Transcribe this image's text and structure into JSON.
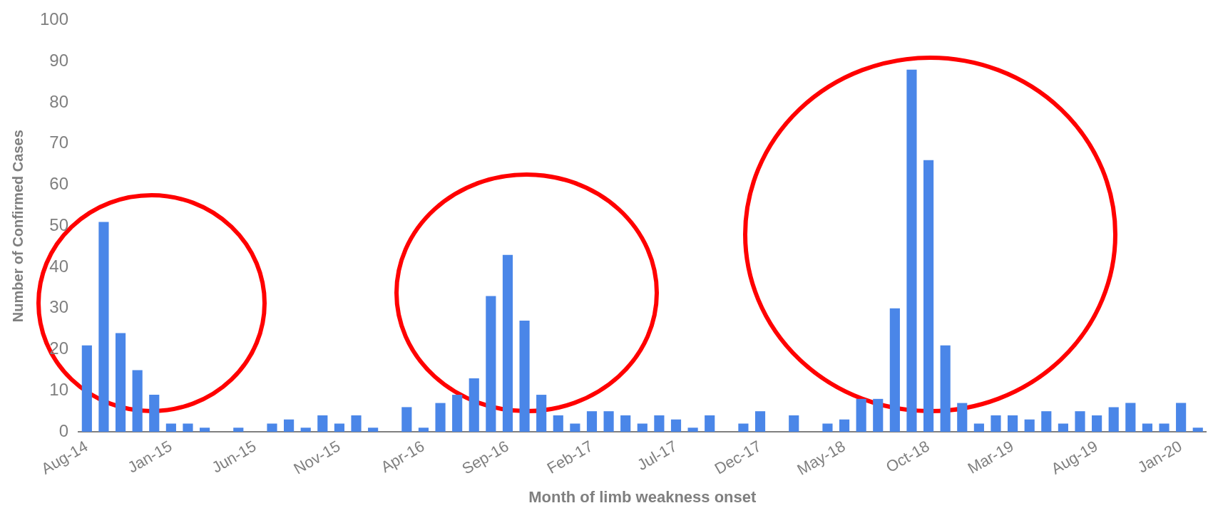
{
  "chart_data": {
    "type": "bar",
    "xlabel": "Month of limb weakness onset",
    "ylabel": "Number of Confirmed Cases",
    "categories": [
      "Aug-14",
      null,
      null,
      null,
      null,
      "Jan-15",
      null,
      null,
      null,
      null,
      "Jun-15",
      null,
      null,
      null,
      null,
      "Nov-15",
      null,
      null,
      null,
      null,
      "Apr-16",
      null,
      null,
      null,
      null,
      "Sep-16",
      null,
      null,
      null,
      null,
      "Feb-17",
      null,
      null,
      null,
      null,
      "Jul-17",
      null,
      null,
      null,
      null,
      "Dec-17",
      null,
      null,
      null,
      null,
      "May-18",
      null,
      null,
      null,
      null,
      "Oct-18",
      null,
      null,
      null,
      null,
      "Mar-19",
      null,
      null,
      null,
      null,
      "Aug-19",
      null,
      null,
      null,
      null,
      "Jan-20",
      null
    ],
    "values": [
      21,
      51,
      24,
      15,
      9,
      2,
      2,
      1,
      0,
      1,
      0,
      2,
      3,
      1,
      4,
      2,
      4,
      1,
      0,
      6,
      1,
      7,
      9,
      13,
      33,
      43,
      27,
      9,
      4,
      2,
      5,
      5,
      4,
      2,
      4,
      3,
      1,
      4,
      0,
      2,
      5,
      0,
      4,
      0,
      2,
      3,
      8,
      8,
      30,
      88,
      66,
      21,
      7,
      2,
      4,
      4,
      3,
      5,
      2,
      5,
      4,
      6,
      7,
      2,
      2,
      7,
      1
    ],
    "color": "#4a86e8",
    "ylim": [
      0,
      100
    ],
    "yticks": [
      0,
      10,
      20,
      30,
      40,
      50,
      60,
      70,
      80,
      90,
      100
    ],
    "grid": false,
    "legend": false
  }
}
